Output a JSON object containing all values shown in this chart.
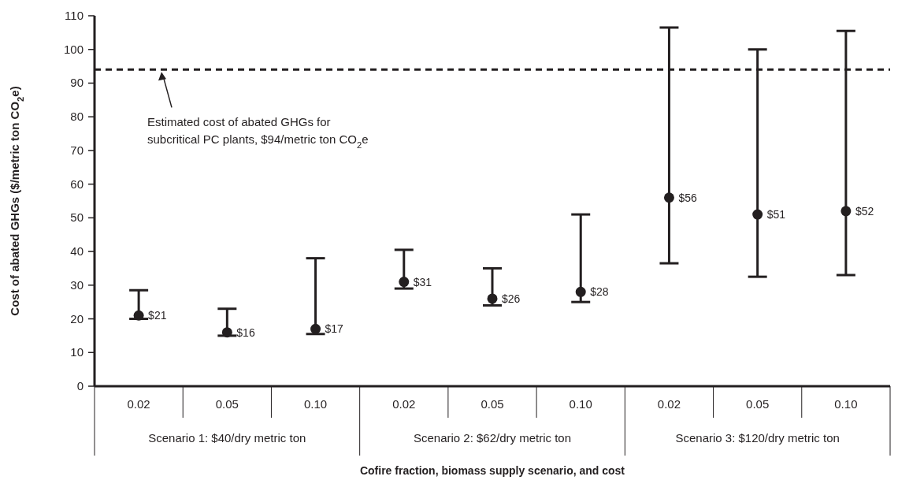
{
  "chart_data": {
    "type": "scatter",
    "xlabel": "Cofire fraction, biomass supply scenario, and cost",
    "ylabel": "Cost of abated GHGs ($/metric ton CO$_{2}$e)",
    "categories": [
      "0.02",
      "0.05",
      "0.10",
      "0.02",
      "0.05",
      "0.10",
      "0.02",
      "0.05",
      "0.10"
    ],
    "values": [
      21,
      16,
      17,
      31,
      26,
      28,
      56,
      51,
      52
    ],
    "value_labels": [
      "$21",
      "$16",
      "$17",
      "$31",
      "$26",
      "$28",
      "$56",
      "$51",
      "$52"
    ],
    "errors": [
      [
        20,
        28.5
      ],
      [
        15,
        23
      ],
      [
        15.5,
        38
      ],
      [
        29,
        40.5
      ],
      [
        24,
        35
      ],
      [
        25,
        51
      ],
      [
        36.5,
        106.5
      ],
      [
        32.5,
        100
      ],
      [
        33,
        105.5
      ]
    ],
    "color": "#231f20",
    "marker": "circle",
    "grid": false,
    "ylim": [
      0,
      110
    ],
    "yticks": [
      0,
      10,
      20,
      30,
      40,
      50,
      60,
      70,
      80,
      90,
      100,
      110
    ],
    "ref_lines": [
      {
        "axis": "y",
        "value": 94,
        "line_style": "dashed",
        "color": "#231f20"
      }
    ],
    "annotations": [
      "Estimated cost of abated GHGs for subcritical PC plants, $94/metric ton CO$_{2}$e",
      "Scenario 1: $40/dry metric ton",
      "Scenario 2: $62/dry metric ton",
      "Scenario 3: $120/dry metric ton"
    ]
  }
}
